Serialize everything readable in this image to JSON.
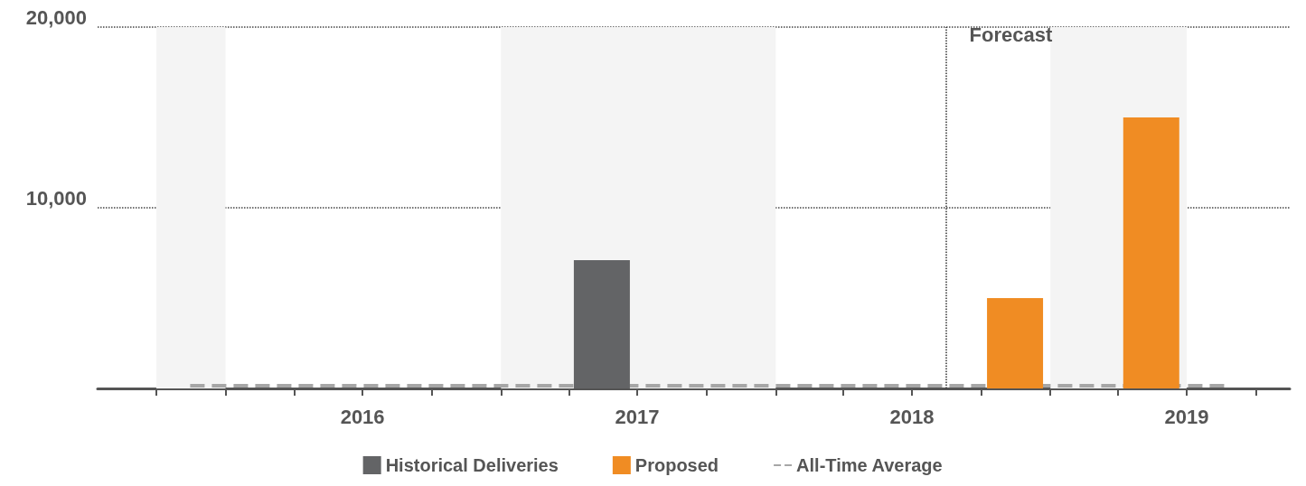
{
  "chart_data": {
    "type": "bar",
    "series": [
      {
        "name": "Historical Deliveries",
        "color": "#636466",
        "x": [
          "2017-05-15"
        ],
        "values": [
          7100
        ]
      },
      {
        "name": "Proposed",
        "color": "#f08c23",
        "x": [
          "2018-11-15",
          "2019-05-15"
        ],
        "values": [
          5000,
          15000
        ]
      },
      {
        "name": "All-Time Average",
        "type": "line",
        "line_style": "dashed",
        "color": "#a6a6a6",
        "x": [
          "2015-11-15",
          "2019-08-20"
        ],
        "values": [
          150,
          150
        ]
      }
    ],
    "xlim": [
      "2015-07-15",
      "2019-11-15"
    ],
    "xticks": [
      {
        "value": "2015-10-01",
        "label": null
      },
      {
        "value": "2016-01-01",
        "label": null
      },
      {
        "value": "2016-04-01",
        "label": null
      },
      {
        "value": "2016-07-01",
        "label": "2016"
      },
      {
        "value": "2016-10-01",
        "label": null
      },
      {
        "value": "2017-01-01",
        "label": null
      },
      {
        "value": "2017-04-01",
        "label": null
      },
      {
        "value": "2017-07-01",
        "label": "2017"
      },
      {
        "value": "2017-10-01",
        "label": null
      },
      {
        "value": "2018-01-01",
        "label": null
      },
      {
        "value": "2018-04-01",
        "label": null
      },
      {
        "value": "2018-07-01",
        "label": "2018"
      },
      {
        "value": "2018-10-01",
        "label": null
      },
      {
        "value": "2019-01-01",
        "label": null
      },
      {
        "value": "2019-04-01",
        "label": null
      },
      {
        "value": "2019-07-01",
        "label": "2019"
      },
      {
        "value": "2019-10-01",
        "label": null
      }
    ],
    "ylim": [
      0,
      20000
    ],
    "yticks": [
      {
        "value": 0,
        "label": null
      },
      {
        "value": 10000,
        "label": "10,000"
      },
      {
        "value": 20000,
        "label": "20,000"
      }
    ],
    "grid": "y",
    "legend": "bottom",
    "bands": [
      {
        "axis": "x",
        "from": "2015-10-01",
        "to": "2016-01-01",
        "color": "#f4f4f4"
      },
      {
        "axis": "x",
        "from": "2017-01-01",
        "to": "2018-01-01",
        "color": "#f4f4f4"
      },
      {
        "axis": "x",
        "from": "2019-01-01",
        "to": "2019-07-01",
        "color": "#f4f4f4"
      }
    ],
    "ref_lines": [
      {
        "axis": "x",
        "value": "2018-08-15",
        "label": "Forecast",
        "color": "#333333",
        "line_style": "dotted"
      }
    ]
  }
}
